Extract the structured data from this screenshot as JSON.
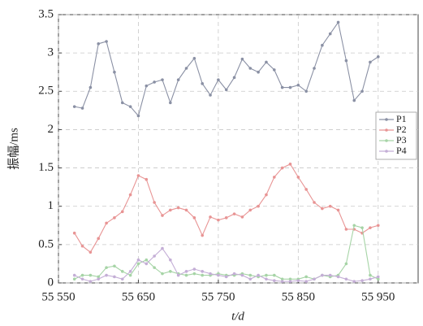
{
  "chart_data": {
    "type": "line",
    "x_label": "t/d",
    "y_label": "振幅/ms",
    "x": [
      55570,
      55580,
      55590,
      55600,
      55610,
      55620,
      55630,
      55640,
      55650,
      55660,
      55670,
      55680,
      55690,
      55700,
      55710,
      55720,
      55730,
      55740,
      55750,
      55760,
      55770,
      55780,
      55790,
      55800,
      55810,
      55820,
      55830,
      55840,
      55850,
      55860,
      55870,
      55880,
      55890,
      55900,
      55910,
      55920,
      55930,
      55940,
      55950
    ],
    "series": [
      {
        "name": "P1",
        "color": "#8a90a4",
        "values": [
          2.3,
          2.28,
          2.55,
          3.12,
          3.15,
          2.75,
          2.35,
          2.3,
          2.18,
          2.57,
          2.62,
          2.65,
          2.35,
          2.65,
          2.8,
          2.93,
          2.6,
          2.45,
          2.65,
          2.52,
          2.68,
          2.92,
          2.8,
          2.75,
          2.88,
          2.78,
          2.55,
          2.55,
          2.58,
          2.5,
          2.8,
          3.1,
          3.25,
          3.4,
          2.9,
          2.38,
          2.5,
          2.88,
          2.95
        ]
      },
      {
        "name": "P2",
        "color": "#e89494",
        "values": [
          0.65,
          0.48,
          0.4,
          0.58,
          0.78,
          0.85,
          0.93,
          1.15,
          1.4,
          1.35,
          1.05,
          0.88,
          0.95,
          0.98,
          0.95,
          0.85,
          0.62,
          0.86,
          0.82,
          0.85,
          0.9,
          0.86,
          0.95,
          1.0,
          1.15,
          1.38,
          1.5,
          1.55,
          1.38,
          1.22,
          1.05,
          0.97,
          1.0,
          0.95,
          0.7,
          0.7,
          0.65,
          0.72,
          0.75
        ]
      },
      {
        "name": "P3",
        "color": "#a6d4a6",
        "values": [
          0.05,
          0.1,
          0.1,
          0.08,
          0.2,
          0.22,
          0.15,
          0.1,
          0.25,
          0.3,
          0.2,
          0.12,
          0.15,
          0.12,
          0.1,
          0.12,
          0.1,
          0.1,
          0.12,
          0.1,
          0.1,
          0.12,
          0.1,
          0.08,
          0.1,
          0.1,
          0.05,
          0.05,
          0.05,
          0.08,
          0.05,
          0.1,
          0.08,
          0.1,
          0.25,
          0.75,
          0.72,
          0.1,
          0.05
        ]
      },
      {
        "name": "P4",
        "color": "#c4aed6",
        "values": [
          0.1,
          0.05,
          0.02,
          0.05,
          0.1,
          0.08,
          0.05,
          0.15,
          0.3,
          0.25,
          0.35,
          0.45,
          0.3,
          0.1,
          0.15,
          0.18,
          0.15,
          0.12,
          0.1,
          0.08,
          0.12,
          0.1,
          0.05,
          0.1,
          0.05,
          0.03,
          0.02,
          0.02,
          0.03,
          0.02,
          0.05,
          0.1,
          0.1,
          0.08,
          0.05,
          0.02,
          0.03,
          0.05,
          0.08
        ]
      }
    ],
    "xlim": [
      55550,
      56000
    ],
    "xticks": [
      {
        "value": 55550,
        "label": "55 550"
      },
      {
        "value": 55650,
        "label": "55 650"
      },
      {
        "value": 55750,
        "label": "55 750"
      },
      {
        "value": 55850,
        "label": "55 850"
      },
      {
        "value": 55950,
        "label": "55 950"
      }
    ],
    "ylim": [
      0,
      3.5
    ],
    "yticks": [
      0,
      0.5,
      1,
      1.5,
      2,
      2.5,
      3,
      3.5
    ],
    "grid": true,
    "legend_position": "right"
  }
}
